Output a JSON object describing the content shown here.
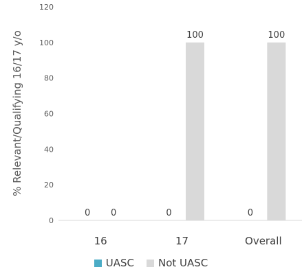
{
  "chart_data": {
    "type": "bar",
    "categories": [
      "16",
      "17",
      "Overall"
    ],
    "series": [
      {
        "name": "UASC",
        "values": [
          0,
          0,
          0
        ],
        "color": "#4BACC6"
      },
      {
        "name": "Not UASC",
        "values": [
          0,
          100,
          100
        ],
        "color": "#D9D9D9"
      }
    ],
    "ylabel": "% Relevant/Qualifying 16/17 y/o",
    "ylim": [
      0,
      120
    ],
    "yticks": [
      0,
      20,
      40,
      60,
      80,
      100,
      120
    ],
    "grid": false,
    "legend_position": "bottom",
    "data_labels": true
  }
}
